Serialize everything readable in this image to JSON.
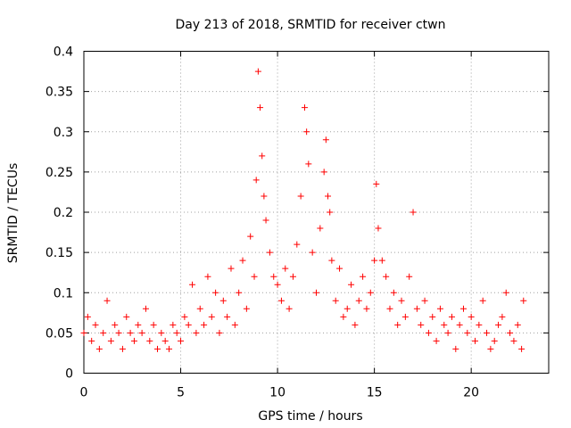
{
  "chart_data": {
    "type": "scatter",
    "title": "Day 213 of 2018, SRMTID for receiver ctwn",
    "xlabel": "GPS time / hours",
    "ylabel": "SRMTID / TECUs",
    "xlim": [
      0,
      24
    ],
    "ylim": [
      0,
      0.4
    ],
    "xticks": [
      0,
      5,
      10,
      15,
      20
    ],
    "yticks": [
      0,
      0.05,
      0.1,
      0.15,
      0.2,
      0.25,
      0.3,
      0.35,
      0.4
    ],
    "grid": true,
    "marker": "+",
    "color": "#ff0000",
    "series": [
      {
        "name": "SRMTID",
        "x": [
          0.0,
          0.2,
          0.4,
          0.6,
          0.8,
          1.0,
          1.2,
          1.4,
          1.6,
          1.8,
          2.0,
          2.2,
          2.4,
          2.6,
          2.8,
          3.0,
          3.2,
          3.4,
          3.6,
          3.8,
          4.0,
          4.2,
          4.4,
          4.6,
          4.8,
          5.0,
          5.2,
          5.4,
          5.6,
          5.8,
          6.0,
          6.2,
          6.4,
          6.6,
          6.8,
          7.0,
          7.2,
          7.4,
          7.6,
          7.8,
          8.0,
          8.2,
          8.4,
          8.6,
          8.8,
          8.9,
          9.0,
          9.1,
          9.2,
          9.3,
          9.4,
          9.6,
          9.8,
          10.0,
          10.2,
          10.4,
          10.6,
          10.8,
          11.0,
          11.2,
          11.4,
          11.5,
          11.6,
          11.8,
          12.0,
          12.2,
          12.4,
          12.5,
          12.6,
          12.7,
          12.8,
          13.0,
          13.2,
          13.4,
          13.6,
          13.8,
          14.0,
          14.2,
          14.4,
          14.6,
          14.8,
          15.0,
          15.1,
          15.2,
          15.4,
          15.6,
          15.8,
          16.0,
          16.2,
          16.4,
          16.6,
          16.8,
          17.0,
          17.2,
          17.4,
          17.6,
          17.8,
          18.0,
          18.2,
          18.4,
          18.6,
          18.8,
          19.0,
          19.2,
          19.4,
          19.6,
          19.8,
          20.0,
          20.2,
          20.4,
          20.6,
          20.8,
          21.0,
          21.2,
          21.4,
          21.6,
          21.8,
          22.0,
          22.2,
          22.4,
          22.6,
          22.7
        ],
        "y": [
          0.05,
          0.07,
          0.04,
          0.06,
          0.03,
          0.05,
          0.09,
          0.04,
          0.06,
          0.05,
          0.03,
          0.07,
          0.05,
          0.04,
          0.06,
          0.05,
          0.08,
          0.04,
          0.06,
          0.03,
          0.05,
          0.04,
          0.03,
          0.06,
          0.05,
          0.04,
          0.07,
          0.06,
          0.11,
          0.05,
          0.08,
          0.06,
          0.12,
          0.07,
          0.1,
          0.05,
          0.09,
          0.07,
          0.13,
          0.06,
          0.1,
          0.14,
          0.08,
          0.17,
          0.12,
          0.24,
          0.375,
          0.33,
          0.27,
          0.22,
          0.19,
          0.15,
          0.12,
          0.11,
          0.09,
          0.13,
          0.08,
          0.12,
          0.16,
          0.22,
          0.33,
          0.3,
          0.26,
          0.15,
          0.1,
          0.18,
          0.25,
          0.29,
          0.22,
          0.2,
          0.14,
          0.09,
          0.13,
          0.07,
          0.08,
          0.11,
          0.06,
          0.09,
          0.12,
          0.08,
          0.1,
          0.14,
          0.235,
          0.18,
          0.14,
          0.12,
          0.08,
          0.1,
          0.06,
          0.09,
          0.07,
          0.12,
          0.2,
          0.08,
          0.06,
          0.09,
          0.05,
          0.07,
          0.04,
          0.08,
          0.06,
          0.05,
          0.07,
          0.03,
          0.06,
          0.08,
          0.05,
          0.07,
          0.04,
          0.06,
          0.09,
          0.05,
          0.03,
          0.04,
          0.06,
          0.07,
          0.1,
          0.05,
          0.04,
          0.06,
          0.03,
          0.09
        ]
      }
    ]
  }
}
